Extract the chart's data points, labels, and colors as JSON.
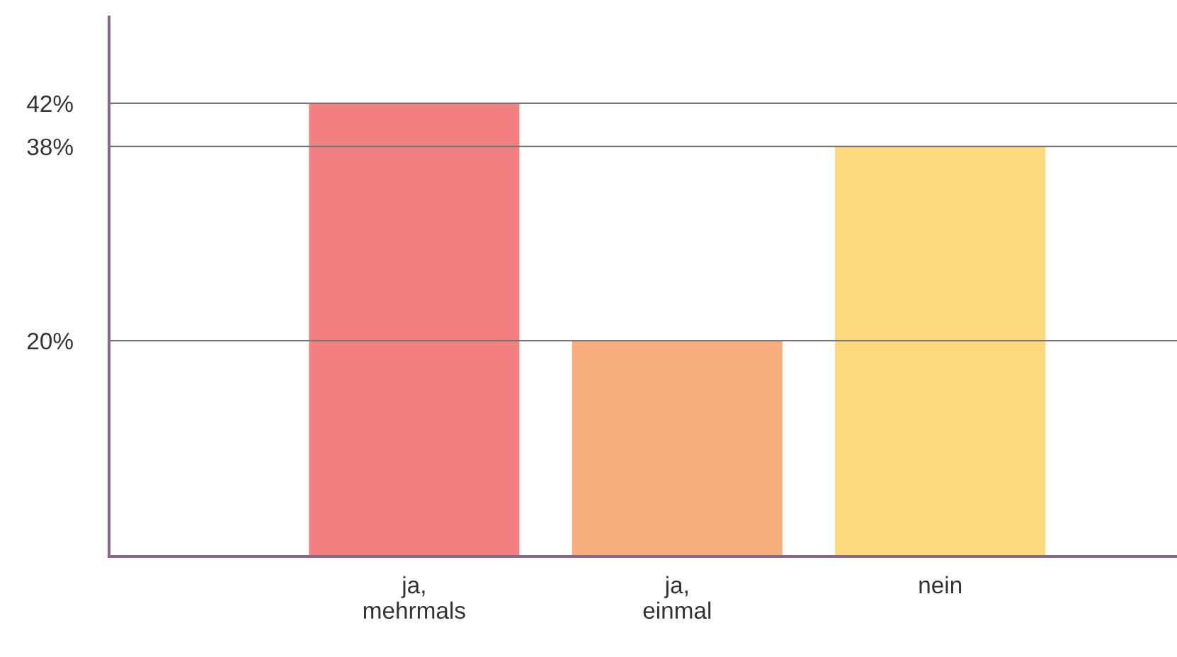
{
  "chart_data": {
    "type": "bar",
    "categories": [
      "ja,\nmehrmals",
      "ja,\neinmal",
      "nein"
    ],
    "values": [
      42,
      20,
      38
    ],
    "colors": [
      "#f28080",
      "#f7ae7b",
      "#fdd97e"
    ],
    "ylim": [
      0,
      50
    ],
    "yticks": [
      {
        "value": 20,
        "label": "20%"
      },
      {
        "value": 38,
        "label": "38%"
      },
      {
        "value": 42,
        "label": "42%"
      }
    ],
    "grid": "y"
  }
}
